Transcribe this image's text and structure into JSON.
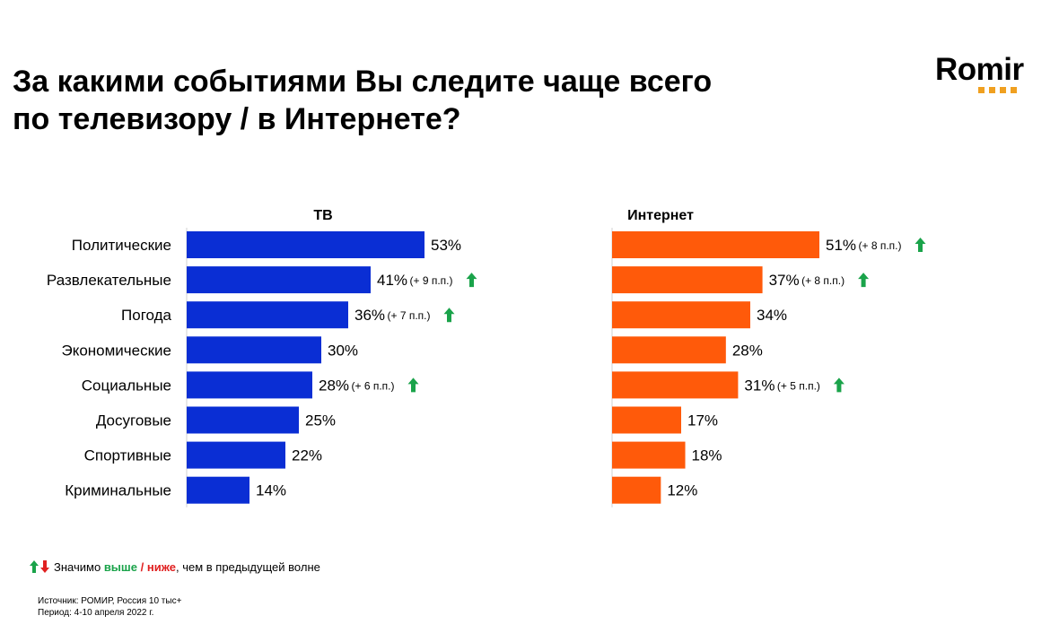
{
  "title_line1": "За какими событиями Вы следите чаще всего",
  "title_line2": "по телевизору / в Интернете?",
  "logo": {
    "text": "Romir",
    "accent_color": "#f0a020"
  },
  "chart_data": {
    "type": "bar",
    "orientation": "horizontal",
    "categories": [
      "Политические",
      "Развлекательные",
      "Погода",
      "Экономические",
      "Социальные",
      "Досуговые",
      "Спортивные",
      "Криминальные"
    ],
    "series": [
      {
        "name": "ТВ",
        "color": "#0a2ed4",
        "values": [
          53,
          41,
          36,
          30,
          28,
          25,
          22,
          14
        ],
        "changes": [
          null,
          "(+ 9 п.п.)",
          "(+ 7 п.п.)",
          null,
          "(+ 6 п.п.)",
          null,
          null,
          null
        ]
      },
      {
        "name": "Интернет",
        "color": "#ff5a0a",
        "values": [
          51,
          37,
          34,
          28,
          31,
          17,
          18,
          12
        ],
        "changes": [
          "(+ 8 п.п.)",
          "(+ 8 п.п.)",
          null,
          null,
          "(+ 5 п.п.)",
          null,
          null,
          null
        ]
      }
    ],
    "value_suffix": "%",
    "up_color": "#1aa34a",
    "down_color": "#e02020"
  },
  "legend": {
    "prefix": "Значимо",
    "higher": "выше",
    "separator": "/",
    "lower": "ниже",
    "suffix": ", чем в предыдущей волне"
  },
  "source_line": "Источник: РОМИР, Россия 10 тыс+",
  "period_line": "Период: 4-10 апреля 2022 г."
}
